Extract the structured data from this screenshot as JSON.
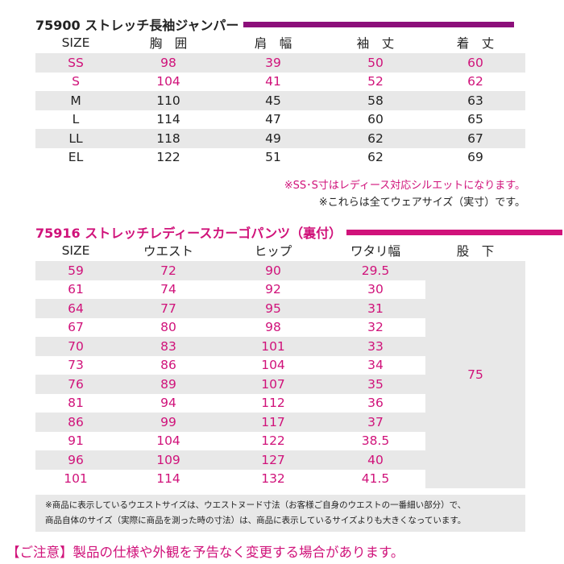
{
  "section1": {
    "title": "75900 ストレッチ長袖ジャンパー",
    "headers": [
      "SIZE",
      "胸　囲",
      "肩　幅",
      "袖　丈",
      "着　丈"
    ],
    "rows": [
      [
        "SS",
        "98",
        "39",
        "50",
        "60"
      ],
      [
        "S",
        "104",
        "41",
        "52",
        "62"
      ],
      [
        "M",
        "110",
        "45",
        "58",
        "63"
      ],
      [
        "L",
        "114",
        "47",
        "60",
        "65"
      ],
      [
        "LL",
        "118",
        "49",
        "62",
        "67"
      ],
      [
        "EL",
        "122",
        "51",
        "62",
        "69"
      ]
    ],
    "note1": "※SS･S寸はレディース対応シルエットになります。",
    "note2": "※これらは全てウェアサイズ（実寸）です。"
  },
  "section2": {
    "title": "75916 ストレッチレディースカーゴパンツ（裏付）",
    "headers": [
      "SIZE",
      "ウエスト",
      "ヒップ",
      "ワタリ幅",
      "股　下"
    ],
    "rows": [
      [
        "59",
        "72",
        "90",
        "29.5"
      ],
      [
        "61",
        "74",
        "92",
        "30"
      ],
      [
        "64",
        "77",
        "95",
        "31"
      ],
      [
        "67",
        "80",
        "98",
        "32"
      ],
      [
        "70",
        "83",
        "101",
        "33"
      ],
      [
        "73",
        "86",
        "104",
        "34"
      ],
      [
        "76",
        "89",
        "107",
        "35"
      ],
      [
        "81",
        "94",
        "112",
        "36"
      ],
      [
        "86",
        "99",
        "117",
        "37"
      ],
      [
        "91",
        "104",
        "122",
        "38.5"
      ],
      [
        "96",
        "109",
        "127",
        "40"
      ],
      [
        "101",
        "114",
        "132",
        "41.5"
      ]
    ],
    "inseam": "75"
  },
  "notice": {
    "line1": "※商品に表示しているウエストサイズは、ウエストヌード寸法（お客様ご自身のウエストの一番細い部分）で、",
    "line2": "商品自体のサイズ（実際に商品を測った時の寸法）は、商品に表示しているサイズよりも大きくなっています。"
  },
  "footer": "【ご注意】製品の仕様や外観を予告なく変更する場合があります。",
  "colors": {
    "accent": "#d0127a",
    "bar1": "#8c0f7a",
    "stripe": "#e8e8e8",
    "text": "#222222"
  }
}
